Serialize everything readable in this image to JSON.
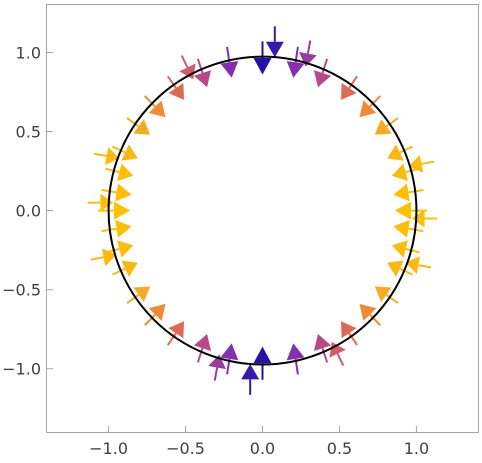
{
  "chart_data": {
    "type": "vector-field",
    "title": "",
    "xlabel": "",
    "ylabel": "",
    "xlim": [
      -1.4,
      1.4
    ],
    "ylim": [
      -1.4,
      1.3
    ],
    "xticks": [
      -1.0,
      -0.5,
      0.0,
      0.5,
      1.0
    ],
    "xtick_labels": [
      "−1.0",
      "−0.5",
      "0.0",
      "0.5",
      "1.0"
    ],
    "yticks": [
      -1.0,
      -0.5,
      0.0,
      0.5,
      1.0
    ],
    "ytick_labels": [
      "−1.0",
      "−0.5",
      "0.0",
      "0.5",
      "1.0"
    ],
    "grid": false,
    "circle": {
      "center": [
        0,
        0
      ],
      "radius": 1.0,
      "color": "#000000"
    },
    "arrow_colormap": [
      "#0a0aa8",
      "#7b2bb5",
      "#c8507a",
      "#f07a3c",
      "#f8b020",
      "#ffc000"
    ],
    "arrows": [
      {
        "x": -1.0,
        "y": 0.0,
        "dx": 0.14,
        "dy": 0.0,
        "magnitude": 1.0
      },
      {
        "x": -0.98,
        "y": 0.12,
        "dx": 0.13,
        "dy": -0.02,
        "magnitude": 0.98
      },
      {
        "x": -0.98,
        "y": -0.12,
        "dx": 0.13,
        "dy": 0.02,
        "magnitude": 0.98
      },
      {
        "x": -0.96,
        "y": 0.25,
        "dx": 0.12,
        "dy": -0.03,
        "magnitude": 0.95
      },
      {
        "x": -0.96,
        "y": -0.25,
        "dx": 0.12,
        "dy": 0.03,
        "magnitude": 0.95
      },
      {
        "x": -0.92,
        "y": 0.38,
        "dx": 0.11,
        "dy": -0.05,
        "magnitude": 0.9
      },
      {
        "x": -0.92,
        "y": -0.38,
        "dx": 0.11,
        "dy": 0.05,
        "magnitude": 0.9
      },
      {
        "x": -0.83,
        "y": 0.55,
        "dx": 0.1,
        "dy": -0.07,
        "magnitude": 0.78
      },
      {
        "x": -0.83,
        "y": -0.55,
        "dx": 0.1,
        "dy": 0.07,
        "magnitude": 0.78
      },
      {
        "x": -0.72,
        "y": 0.68,
        "dx": 0.09,
        "dy": -0.09,
        "magnitude": 0.66
      },
      {
        "x": -0.72,
        "y": -0.68,
        "dx": 0.09,
        "dy": 0.09,
        "magnitude": 0.66
      },
      {
        "x": -0.58,
        "y": 0.8,
        "dx": 0.07,
        "dy": -0.1,
        "magnitude": 0.52
      },
      {
        "x": -0.58,
        "y": -0.8,
        "dx": 0.07,
        "dy": 0.1,
        "magnitude": 0.52
      },
      {
        "x": -0.4,
        "y": 0.9,
        "dx": 0.04,
        "dy": -0.12,
        "magnitude": 0.36
      },
      {
        "x": -0.4,
        "y": -0.9,
        "dx": 0.04,
        "dy": 0.12,
        "magnitude": 0.36
      },
      {
        "x": -0.22,
        "y": 0.97,
        "dx": 0.02,
        "dy": -0.13,
        "magnitude": 0.22
      },
      {
        "x": -0.22,
        "y": -0.97,
        "dx": 0.02,
        "dy": 0.13,
        "magnitude": 0.22
      },
      {
        "x": 0.0,
        "y": 1.0,
        "dx": 0.0,
        "dy": -0.14,
        "magnitude": 0.05
      },
      {
        "x": 0.0,
        "y": -1.0,
        "dx": 0.0,
        "dy": 0.14,
        "magnitude": 0.05
      },
      {
        "x": 0.08,
        "y": 1.1,
        "dx": 0.0,
        "dy": -0.13,
        "magnitude": 0.08
      },
      {
        "x": -0.08,
        "y": -1.1,
        "dx": 0.0,
        "dy": 0.13,
        "magnitude": 0.08
      },
      {
        "x": 0.22,
        "y": 0.97,
        "dx": -0.02,
        "dy": -0.13,
        "magnitude": 0.22
      },
      {
        "x": 0.22,
        "y": -0.97,
        "dx": -0.02,
        "dy": 0.13,
        "magnitude": 0.22
      },
      {
        "x": 0.4,
        "y": 0.9,
        "dx": -0.04,
        "dy": -0.12,
        "magnitude": 0.36
      },
      {
        "x": 0.4,
        "y": -0.9,
        "dx": -0.04,
        "dy": 0.12,
        "magnitude": 0.36
      },
      {
        "x": 0.58,
        "y": 0.8,
        "dx": -0.07,
        "dy": -0.1,
        "magnitude": 0.52
      },
      {
        "x": 0.58,
        "y": -0.8,
        "dx": -0.07,
        "dy": 0.1,
        "magnitude": 0.52
      },
      {
        "x": 0.72,
        "y": 0.68,
        "dx": -0.09,
        "dy": -0.09,
        "magnitude": 0.66
      },
      {
        "x": 0.72,
        "y": -0.68,
        "dx": -0.09,
        "dy": 0.09,
        "magnitude": 0.66
      },
      {
        "x": 0.83,
        "y": 0.55,
        "dx": -0.1,
        "dy": -0.07,
        "magnitude": 0.78
      },
      {
        "x": 0.83,
        "y": -0.55,
        "dx": -0.1,
        "dy": 0.07,
        "magnitude": 0.78
      },
      {
        "x": 0.92,
        "y": 0.38,
        "dx": -0.11,
        "dy": -0.05,
        "magnitude": 0.9
      },
      {
        "x": 0.92,
        "y": -0.38,
        "dx": -0.11,
        "dy": 0.05,
        "magnitude": 0.9
      },
      {
        "x": 0.96,
        "y": 0.25,
        "dx": -0.12,
        "dy": -0.03,
        "magnitude": 0.95
      },
      {
        "x": 0.96,
        "y": -0.25,
        "dx": -0.12,
        "dy": 0.03,
        "magnitude": 0.95
      },
      {
        "x": 0.98,
        "y": 0.12,
        "dx": -0.13,
        "dy": -0.02,
        "magnitude": 0.98
      },
      {
        "x": 0.98,
        "y": -0.12,
        "dx": -0.13,
        "dy": 0.02,
        "magnitude": 0.98
      },
      {
        "x": 1.0,
        "y": 0.0,
        "dx": -0.14,
        "dy": 0.0,
        "magnitude": 1.0
      },
      {
        "x": -1.08,
        "y": 0.05,
        "dx": 0.11,
        "dy": 0.0,
        "magnitude": 0.97
      },
      {
        "x": -1.06,
        "y": -0.3,
        "dx": 0.11,
        "dy": 0.02,
        "magnitude": 0.93
      },
      {
        "x": -1.04,
        "y": 0.35,
        "dx": 0.11,
        "dy": -0.02,
        "magnitude": 0.93
      },
      {
        "x": 1.08,
        "y": -0.05,
        "dx": -0.11,
        "dy": 0.0,
        "magnitude": 0.97
      },
      {
        "x": 1.06,
        "y": 0.3,
        "dx": -0.11,
        "dy": -0.02,
        "magnitude": 0.93
      },
      {
        "x": 1.04,
        "y": -0.35,
        "dx": -0.11,
        "dy": 0.02,
        "magnitude": 0.93
      },
      {
        "x": -0.5,
        "y": 0.93,
        "dx": 0.05,
        "dy": -0.1,
        "magnitude": 0.45
      },
      {
        "x": 0.5,
        "y": -0.93,
        "dx": -0.05,
        "dy": 0.1,
        "magnitude": 0.45
      },
      {
        "x": -0.3,
        "y": -1.02,
        "dx": 0.02,
        "dy": 0.11,
        "magnitude": 0.28
      },
      {
        "x": 0.3,
        "y": 1.02,
        "dx": -0.02,
        "dy": -0.11,
        "magnitude": 0.28
      }
    ]
  }
}
